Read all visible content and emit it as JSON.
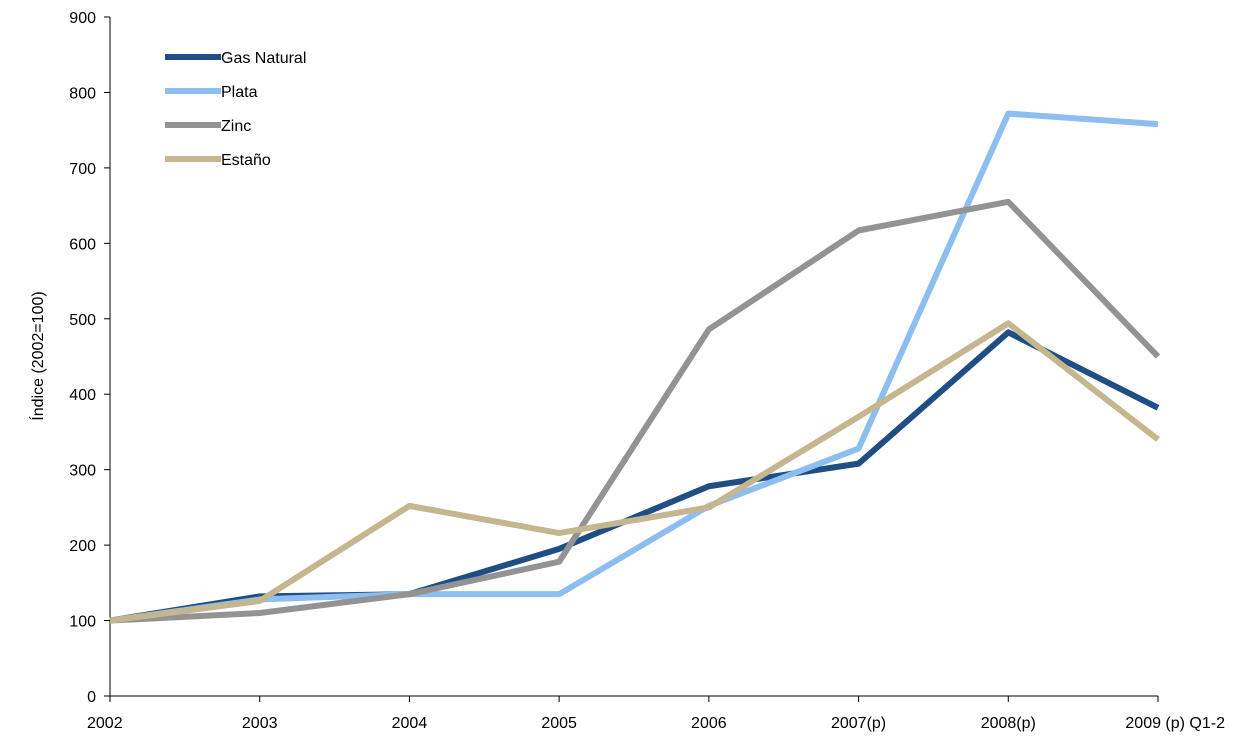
{
  "chart_data": {
    "type": "line",
    "title": "",
    "xlabel": "",
    "ylabel": "Índice (2002=100)",
    "ylim": [
      0,
      900
    ],
    "yticks": [
      0,
      100,
      200,
      300,
      400,
      500,
      600,
      700,
      800,
      900
    ],
    "grid": false,
    "legend_position": "top-left",
    "categories": [
      "2002",
      "2003",
      "2004",
      "2005",
      "2006",
      "2007(p)",
      "2008(p)",
      "2009 (p) Q1-2"
    ],
    "series": [
      {
        "name": "Gas Natural",
        "color": "#1F4E84",
        "values": [
          100,
          132,
          135,
          195,
          278,
          308,
          482,
          382
        ]
      },
      {
        "name": "Plata",
        "color": "#8DBEF0",
        "values": [
          100,
          128,
          135,
          135,
          252,
          328,
          772,
          758
        ]
      },
      {
        "name": "Zinc",
        "color": "#939393",
        "values": [
          100,
          110,
          135,
          178,
          486,
          617,
          655,
          450
        ]
      },
      {
        "name": "Estaño",
        "color": "#C4B68E",
        "values": [
          100,
          126,
          252,
          216,
          250,
          370,
          494,
          340
        ]
      }
    ]
  }
}
